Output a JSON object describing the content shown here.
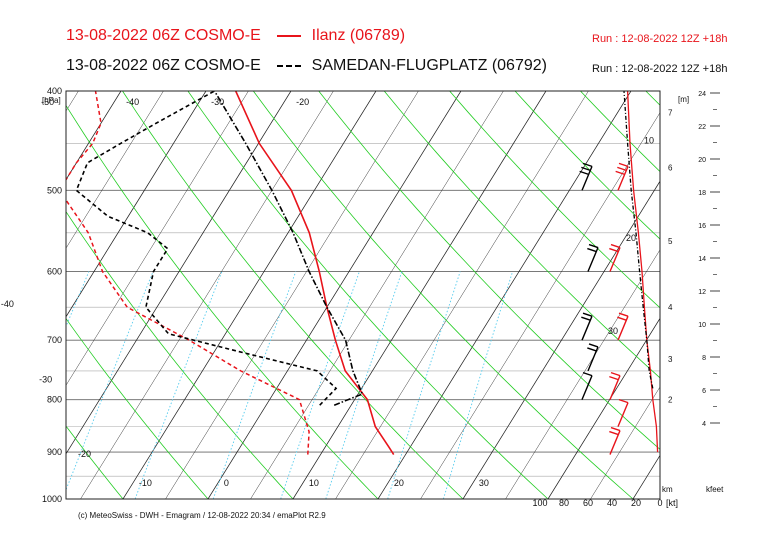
{
  "header": {
    "line1_title": "13-08-2022 06Z COSMO-E",
    "line1_series": "Ilanz (06789)",
    "line1_run": "Run : 12-08-2022 12Z +18h",
    "line2_title": "13-08-2022 06Z COSMO-E",
    "line2_series": "SAMEDAN-FLUGPLATZ (06792)",
    "line2_run": "Run : 12-08-2022 12Z +18h"
  },
  "footer": {
    "credit": "(c) MeteoSwiss - DWH - Emagram / 12-08-2022  20:34 / emaPlot R2.9"
  },
  "colors": {
    "ilanz": "#e8141b",
    "samedan": "#000000",
    "dry_adiabat": "#22cc22",
    "mixing_ratio": "#55ccee",
    "isotherm": "#222222",
    "grid": "#888888"
  },
  "chart_data": {
    "type": "line",
    "subtype": "emagram (skew-T log-p)",
    "y_axis": {
      "label": "[hPa]",
      "scale": "log",
      "range": [
        1000,
        400
      ],
      "ticks": [
        "400",
        "500",
        "600",
        "700",
        "800",
        "900",
        "1000"
      ]
    },
    "x_axis": {
      "label": "temperature",
      "isotherm_labels": [
        "-60",
        "-50",
        "-40",
        "-30",
        "-20",
        "-10",
        "0",
        "10",
        "20",
        "30"
      ],
      "skewed_labels_left": [
        "-60",
        "-50",
        "-40",
        "-30",
        "-20"
      ],
      "top_labels": [
        "-60",
        "-50",
        "-40",
        "-30",
        "-20"
      ],
      "bottom_labels": [
        "-10",
        "0",
        "10",
        "20",
        "30"
      ]
    },
    "height_axis_m": {
      "label": "[m]",
      "ticks": [
        "7",
        "6",
        "5",
        "4",
        "3",
        "2"
      ]
    },
    "height_axis_km": {
      "label": "km",
      "ticks": []
    },
    "height_axis_kfeet": {
      "label": "kfeet",
      "ticks": [
        "24",
        "22",
        "20",
        "18",
        "16",
        "14",
        "12",
        "10",
        "8",
        "6",
        "4"
      ]
    },
    "wind_axis": {
      "label": "[kt]",
      "ticks": [
        "100",
        "80",
        "60",
        "40",
        "20",
        "0"
      ]
    },
    "wind_profile_labels": [
      "10",
      "20",
      "30"
    ],
    "series": [
      {
        "name": "Ilanz (06789)",
        "style": "solid",
        "temperature": [
          [
            905,
            18.6
          ],
          [
            890,
            17.5
          ],
          [
            850,
            14.4
          ],
          [
            800,
            11.5
          ],
          [
            750,
            6.8
          ],
          [
            700,
            3.4
          ],
          [
            650,
            0.0
          ],
          [
            600,
            -3.5
          ],
          [
            550,
            -7.5
          ],
          [
            500,
            -12.7
          ],
          [
            450,
            -19.9
          ],
          [
            400,
            -26.5
          ]
        ],
        "dewpoint_style": "dashed",
        "dewpoint": [
          [
            905,
            8.5
          ],
          [
            860,
            7.0
          ],
          [
            800,
            3.5
          ],
          [
            750,
            -5.5
          ],
          [
            700,
            -13.8
          ],
          [
            650,
            -23.5
          ],
          [
            600,
            -29.0
          ],
          [
            550,
            -33.5
          ],
          [
            500,
            -40.0
          ],
          [
            470,
            -40.0
          ],
          [
            450,
            -39.5
          ],
          [
            430,
            -40.0
          ],
          [
            400,
            -43.0
          ]
        ],
        "wind": [
          {
            "p": 905,
            "ws_kt": 15
          },
          {
            "p": 850,
            "ws_kt": 10
          },
          {
            "p": 800,
            "ws_kt": 20
          },
          {
            "p": 700,
            "ws_kt": 15
          },
          {
            "p": 600,
            "ws_kt": 20
          },
          {
            "p": 500,
            "ws_kt": 25
          },
          {
            "p": 400,
            "ws_kt": 35
          }
        ],
        "wind_speed_profile_kt": [
          [
            900,
            2
          ],
          [
            850,
            3
          ],
          [
            800,
            6
          ],
          [
            750,
            8
          ],
          [
            700,
            11
          ],
          [
            650,
            13
          ],
          [
            600,
            15
          ],
          [
            550,
            18
          ],
          [
            500,
            22
          ],
          [
            450,
            25
          ],
          [
            400,
            27
          ]
        ]
      },
      {
        "name": "SAMEDAN-FLUGPLATZ (06792)",
        "style": "dash-dot",
        "temperature": [
          [
            810,
            8.0
          ],
          [
            790,
            10.5
          ],
          [
            750,
            7.7
          ],
          [
            700,
            4.6
          ],
          [
            650,
            0.0
          ],
          [
            600,
            -4.7
          ],
          [
            550,
            -9.4
          ],
          [
            500,
            -15.0
          ],
          [
            450,
            -21.5
          ],
          [
            400,
            -29.0
          ]
        ],
        "dewpoint_style": "dashed",
        "dewpoint": [
          [
            810,
            6.3
          ],
          [
            780,
            7.0
          ],
          [
            750,
            3.5
          ],
          [
            720,
            -6.5
          ],
          [
            690,
            -16.7
          ],
          [
            650,
            -21.3
          ],
          [
            600,
            -23.0
          ],
          [
            570,
            -23.0
          ],
          [
            550,
            -26.5
          ],
          [
            530,
            -32.4
          ],
          [
            500,
            -38.0
          ],
          [
            470,
            -38.7
          ],
          [
            450,
            -36.2
          ],
          [
            430,
            -33.5
          ],
          [
            400,
            -29.0
          ]
        ],
        "wind": [
          {
            "p": 800,
            "ws_kt": 10
          },
          {
            "p": 750,
            "ws_kt": 15
          },
          {
            "p": 700,
            "ws_kt": 15
          },
          {
            "p": 600,
            "ws_kt": 20
          },
          {
            "p": 500,
            "ws_kt": 25
          },
          {
            "p": 400,
            "ws_kt": 35
          }
        ],
        "wind_speed_profile_kt": [
          [
            780,
            6
          ],
          [
            750,
            9
          ],
          [
            700,
            11
          ],
          [
            650,
            14
          ],
          [
            600,
            17
          ],
          [
            550,
            20
          ],
          [
            500,
            24
          ],
          [
            450,
            27
          ],
          [
            400,
            30
          ]
        ]
      }
    ]
  }
}
